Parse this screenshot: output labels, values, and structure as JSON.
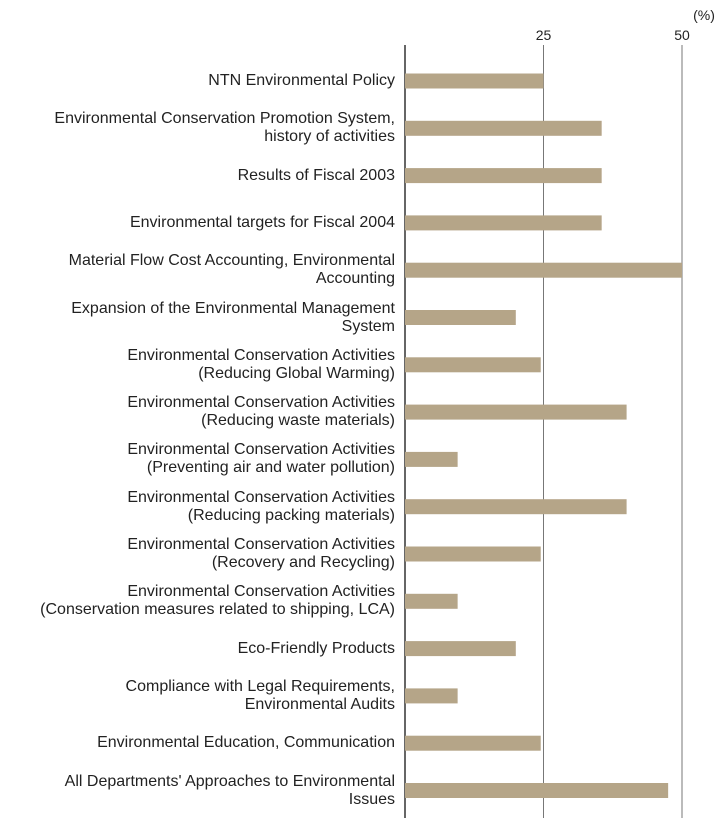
{
  "chart_data": {
    "type": "bar",
    "orientation": "horizontal",
    "x_label": "(%)",
    "categories": [
      "NTN Environmental Policy",
      "Environmental Conservation Promotion System,\nhistory of activities",
      "Results of Fiscal 2003",
      "Environmental targets for Fiscal 2004",
      "Material Flow Cost Accounting, Environmental\nAccounting",
      "Expansion of the Environmental Management\nSystem",
      "Environmental Conservation Activities\n(Reducing Global Warming)",
      "Environmental Conservation Activities\n(Reducing waste materials)",
      "Environmental Conservation Activities\n(Preventing air and water pollution)",
      "Environmental Conservation Activities\n(Reducing packing materials)",
      "Environmental Conservation Activities\n(Recovery and Recycling)",
      "Environmental Conservation Activities\n(Conservation measures related to shipping, LCA)",
      "Eco-Friendly Products",
      "Compliance with Legal Requirements,\nEnvironmental Audits",
      "Environmental Education, Communication",
      "All Departments' Approaches to Environmental\nIssues"
    ],
    "values": [
      25,
      35.5,
      35.5,
      35.5,
      50,
      20,
      24.5,
      40,
      9.5,
      40,
      24.5,
      9.5,
      20,
      9.5,
      24.5,
      47.5
    ],
    "color": "#b5a588",
    "xlim": [
      0,
      50
    ],
    "xticks": [
      25,
      50
    ],
    "grid": true
  }
}
